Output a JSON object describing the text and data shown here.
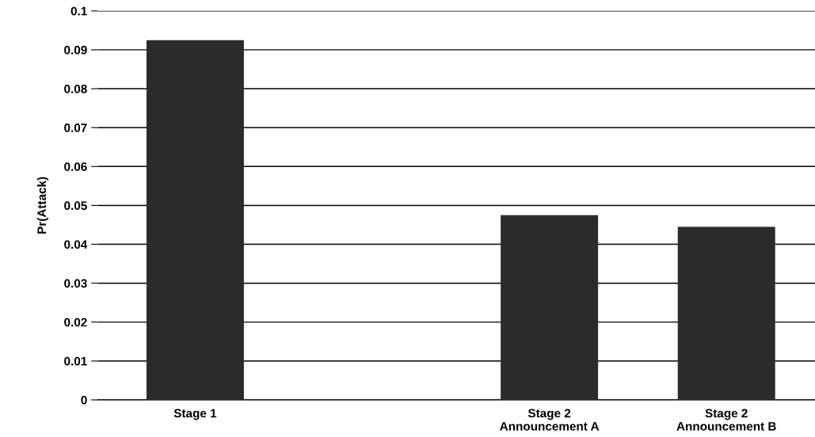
{
  "chart_data": {
    "type": "bar",
    "ylabel": "Pr(Attack)",
    "categories": [
      "Stage 1",
      null,
      "Stage 2\nAnnouncement A",
      "Stage 2\nAnnouncement B"
    ],
    "values": [
      0.0925,
      null,
      0.0475,
      0.0445
    ],
    "color": "#2b2b2b",
    "ylim": [
      0,
      0.1
    ],
    "yticks": [
      0,
      0.01,
      0.02,
      0.03,
      0.04,
      0.05,
      0.06,
      0.07,
      0.08,
      0.09,
      0.1
    ],
    "grid": "y",
    "legend": false
  }
}
